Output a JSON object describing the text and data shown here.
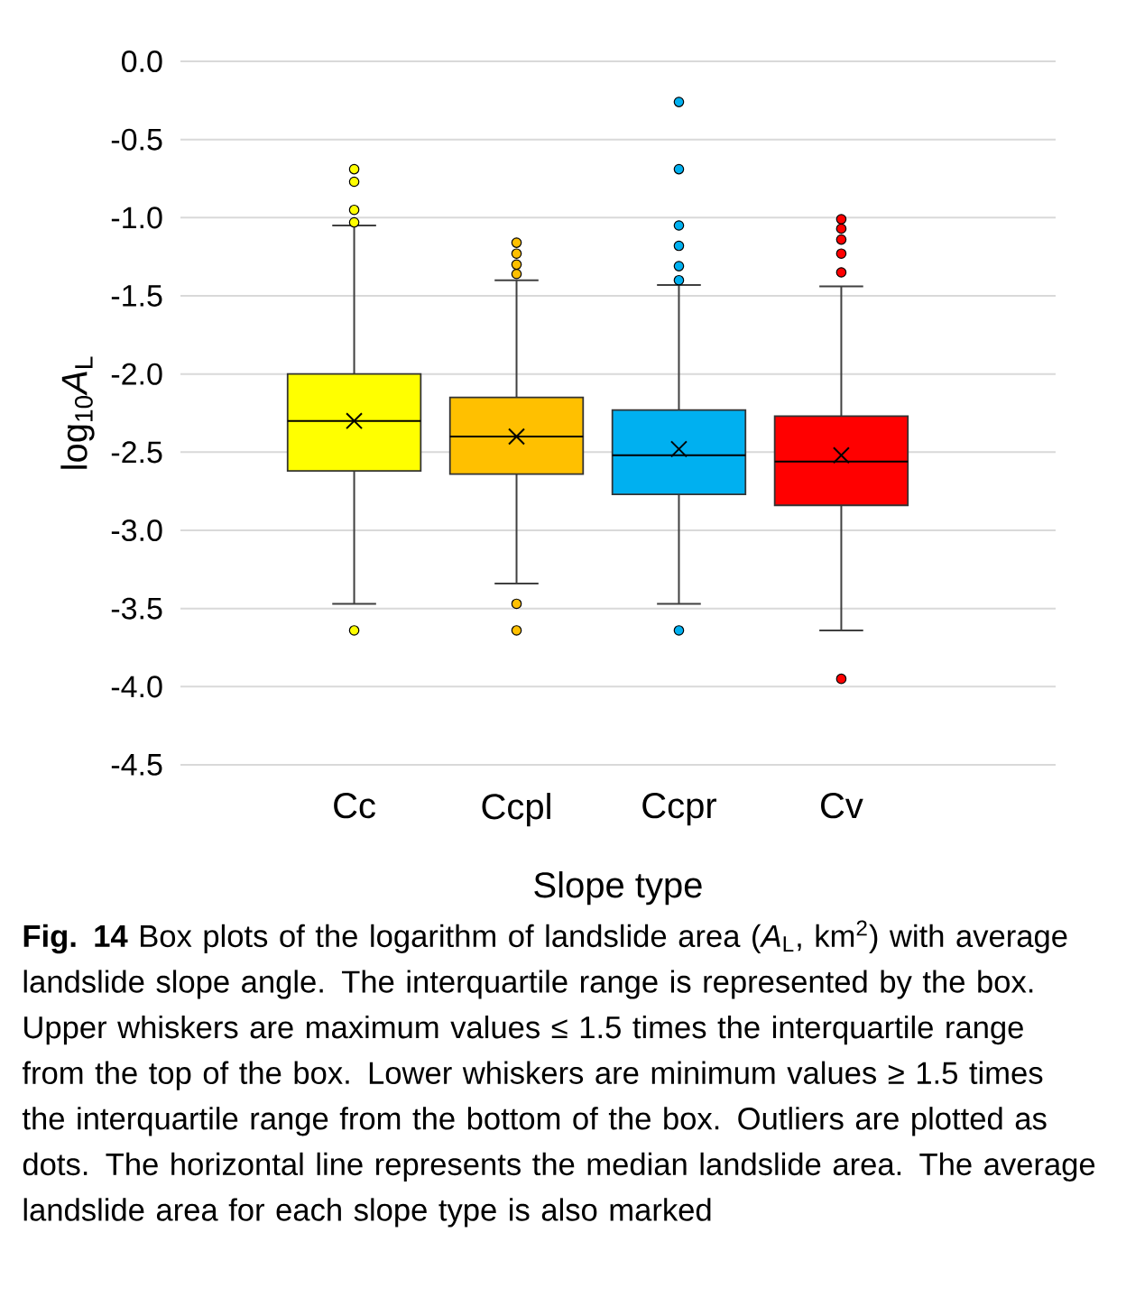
{
  "chart_data": {
    "type": "box",
    "ylabel": "log$_{10}$*A*$_{L}$",
    "xlabel": "Slope type",
    "categories": [
      "Cc",
      "Ccpl",
      "Ccpr",
      "Cv"
    ],
    "colors": [
      "#ffff00",
      "#ffc000",
      "#00b0f0",
      "#ff0000"
    ],
    "boxes": [
      {
        "low": -3.47,
        "q1": -2.62,
        "median": -2.3,
        "q3": -2.0,
        "high": -1.05,
        "mean": -2.3,
        "outliers": [
          -0.69,
          -0.77,
          -0.95,
          -1.03,
          -3.64
        ]
      },
      {
        "low": -3.34,
        "q1": -2.64,
        "median": -2.4,
        "q3": -2.15,
        "high": -1.4,
        "mean": -2.4,
        "outliers": [
          -1.16,
          -1.23,
          -1.3,
          -1.36,
          -3.47,
          -3.64
        ]
      },
      {
        "low": -3.47,
        "q1": -2.77,
        "median": -2.52,
        "q3": -2.23,
        "high": -1.43,
        "mean": -2.48,
        "outliers": [
          -0.26,
          -0.69,
          -1.05,
          -1.18,
          -1.31,
          -1.4,
          -3.64
        ]
      },
      {
        "low": -3.64,
        "q1": -2.84,
        "median": -2.56,
        "q3": -2.27,
        "high": -1.44,
        "mean": -2.52,
        "outliers": [
          -1.01,
          -1.07,
          -1.14,
          -1.23,
          -1.35,
          -3.95
        ]
      }
    ],
    "ylim": [
      -4.5,
      0
    ],
    "yticks": [
      {
        "value": 0,
        "label": "0.0"
      },
      -0.5,
      {
        "value": -1,
        "label": "-1.0"
      },
      -1.5,
      {
        "value": -2,
        "label": "-2.0"
      },
      -2.5,
      {
        "value": -3,
        "label": "-3.0"
      },
      -3.5,
      {
        "value": -4,
        "label": "-4.0"
      },
      -4.5
    ],
    "grid": "y",
    "annotations": [
      "**Fig. 14** Box plots of the logarithm of landslide area (*A*$_{L}$, km$^{2}$) with average landslide slope angle. The interquartile range is represented by the box. Upper whiskers are maximum values ≤ 1.5 times the interquartile range from the top of the box. Lower whiskers are minimum values ≥ 1.5 times the interquartile range from the bottom of the box. Outliers are plotted as dots. The horizontal line represents the median landslide area. The average landslide area for each slope type is also marked"
    ]
  }
}
